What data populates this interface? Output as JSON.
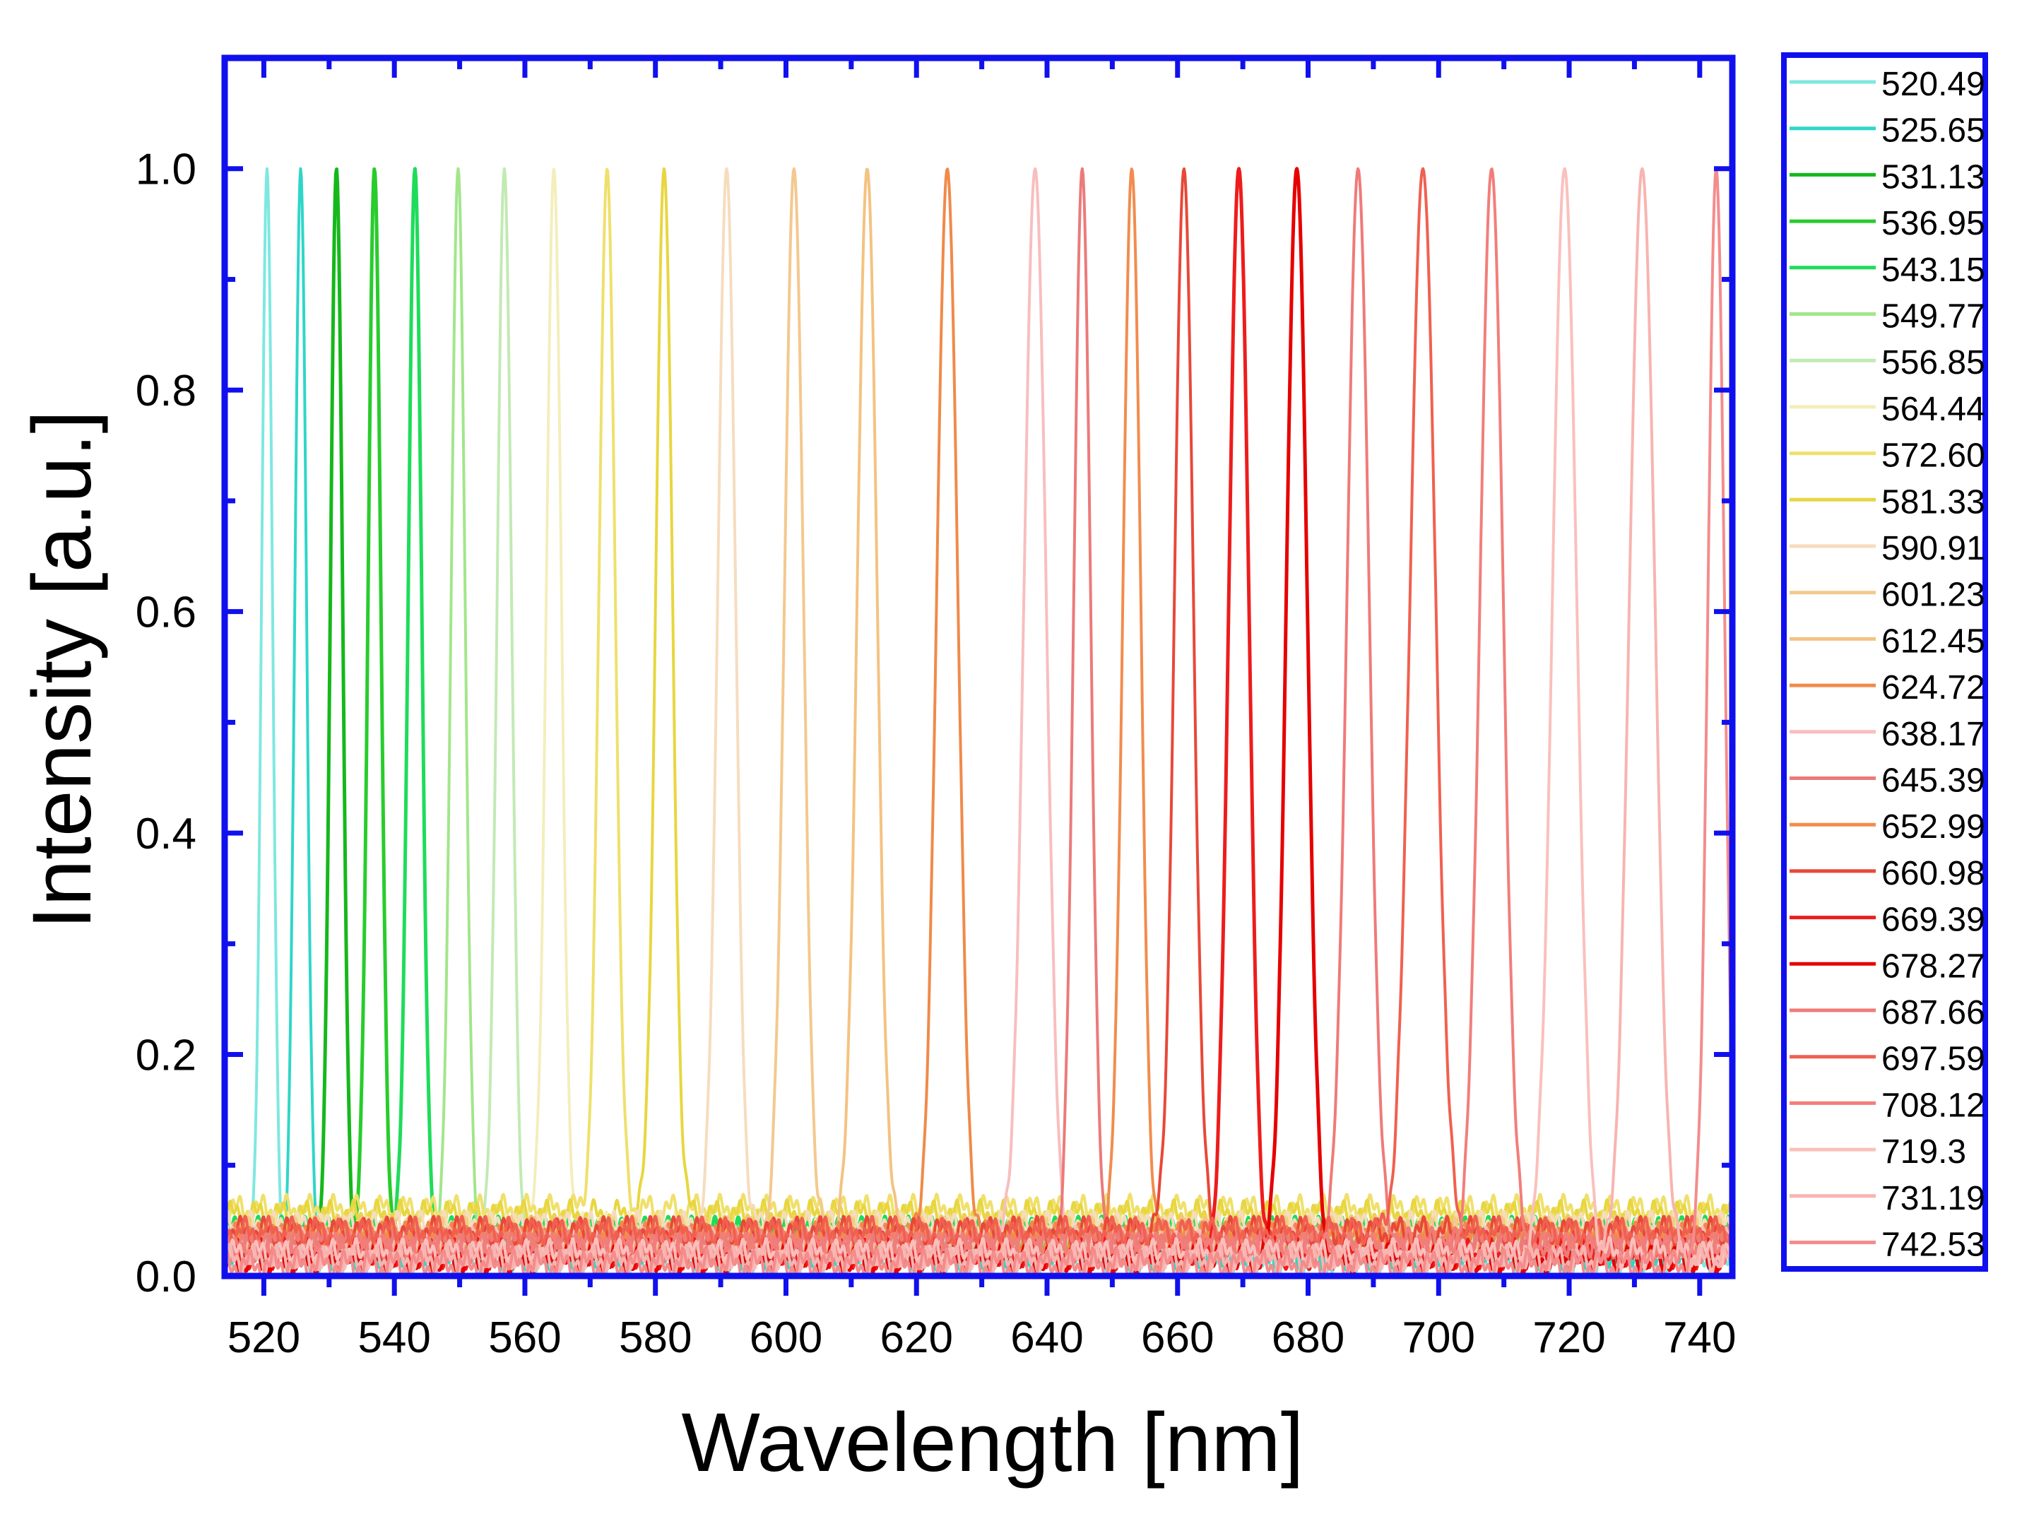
{
  "chart_data": {
    "type": "line",
    "title": "",
    "xlabel": "Wavelength [nm]",
    "ylabel": "Intensity [a.u.]",
    "xlim": [
      514,
      745
    ],
    "ylim": [
      0,
      1.1
    ],
    "x_ticks": [
      520,
      540,
      560,
      580,
      600,
      620,
      640,
      660,
      680,
      700,
      720,
      740
    ],
    "x_tick_labels": [
      "520",
      "540",
      "560",
      "580",
      "600",
      "620",
      "640",
      "660",
      "680",
      "700",
      "720",
      "740"
    ],
    "y_ticks": [
      0.0,
      0.2,
      0.4,
      0.6,
      0.8,
      1.0
    ],
    "y_tick_labels": [
      "0.0",
      "0.2",
      "0.4",
      "0.6",
      "0.8",
      "1.0"
    ],
    "grid": false,
    "legend_position": "right-outside",
    "frame_color": "#1010ee",
    "series": [
      {
        "name": "520.49",
        "peak": 520.49,
        "fwhm": 2.0,
        "baseline": 0.01,
        "color": "#7ee8e0"
      },
      {
        "name": "525.65",
        "peak": 525.65,
        "fwhm": 2.1,
        "baseline": 0.02,
        "color": "#2fd6c8"
      },
      {
        "name": "531.13",
        "peak": 531.13,
        "fwhm": 2.2,
        "baseline": 0.03,
        "color": "#15b81a"
      },
      {
        "name": "536.95",
        "peak": 536.95,
        "fwhm": 2.3,
        "baseline": 0.035,
        "color": "#28cc2c"
      },
      {
        "name": "543.15",
        "peak": 543.15,
        "fwhm": 2.4,
        "baseline": 0.04,
        "color": "#1edc5a"
      },
      {
        "name": "549.77",
        "peak": 549.77,
        "fwhm": 2.5,
        "baseline": 0.03,
        "color": "#a2e68a"
      },
      {
        "name": "556.85",
        "peak": 556.85,
        "fwhm": 2.6,
        "baseline": 0.03,
        "color": "#c2eab4"
      },
      {
        "name": "564.44",
        "peak": 564.44,
        "fwhm": 2.7,
        "baseline": 0.045,
        "color": "#f4eebc"
      },
      {
        "name": "572.60",
        "peak": 572.6,
        "fwhm": 2.9,
        "baseline": 0.06,
        "color": "#efe06c"
      },
      {
        "name": "581.33",
        "peak": 581.33,
        "fwhm": 3.0,
        "baseline": 0.055,
        "color": "#e8d640"
      },
      {
        "name": "590.91",
        "peak": 590.91,
        "fwhm": 3.2,
        "baseline": 0.045,
        "color": "#f6dcbe"
      },
      {
        "name": "601.23",
        "peak": 601.23,
        "fwhm": 3.4,
        "baseline": 0.04,
        "color": "#f4c88e"
      },
      {
        "name": "612.45",
        "peak": 612.45,
        "fwhm": 3.6,
        "baseline": 0.04,
        "color": "#f4c282"
      },
      {
        "name": "624.72",
        "peak": 624.72,
        "fwhm": 3.8,
        "baseline": 0.035,
        "color": "#f08a4a"
      },
      {
        "name": "638.17",
        "peak": 638.17,
        "fwhm": 4.0,
        "baseline": 0.03,
        "color": "#f8bebe"
      },
      {
        "name": "645.39",
        "peak": 645.39,
        "fwhm": 3.0,
        "baseline": 0.03,
        "color": "#ec7a7a"
      },
      {
        "name": "652.99",
        "peak": 652.99,
        "fwhm": 3.2,
        "baseline": 0.035,
        "color": "#f28c4e"
      },
      {
        "name": "660.98",
        "peak": 660.98,
        "fwhm": 3.4,
        "baseline": 0.04,
        "color": "#e84838"
      },
      {
        "name": "669.39",
        "peak": 669.39,
        "fwhm": 3.6,
        "baseline": 0.02,
        "color": "#ee1c1c"
      },
      {
        "name": "678.27",
        "peak": 678.27,
        "fwhm": 3.8,
        "baseline": 0.015,
        "color": "#e60000"
      },
      {
        "name": "687.66",
        "peak": 687.66,
        "fwhm": 4.0,
        "baseline": 0.03,
        "color": "#f07a78"
      },
      {
        "name": "697.59",
        "peak": 697.59,
        "fwhm": 4.6,
        "baseline": 0.04,
        "color": "#f06050"
      },
      {
        "name": "708.12",
        "peak": 708.12,
        "fwhm": 4.2,
        "baseline": 0.025,
        "color": "#f27e7a"
      },
      {
        "name": "719.3",
        "peak": 719.3,
        "fwhm": 4.4,
        "baseline": 0.02,
        "color": "#fac0bc"
      },
      {
        "name": "731.19",
        "peak": 731.19,
        "fwhm": 4.6,
        "baseline": 0.015,
        "color": "#f8b4b0"
      },
      {
        "name": "742.53",
        "peak": 742.53,
        "fwhm": 3.0,
        "baseline": 0.01,
        "color": "#f48c8c"
      }
    ]
  }
}
